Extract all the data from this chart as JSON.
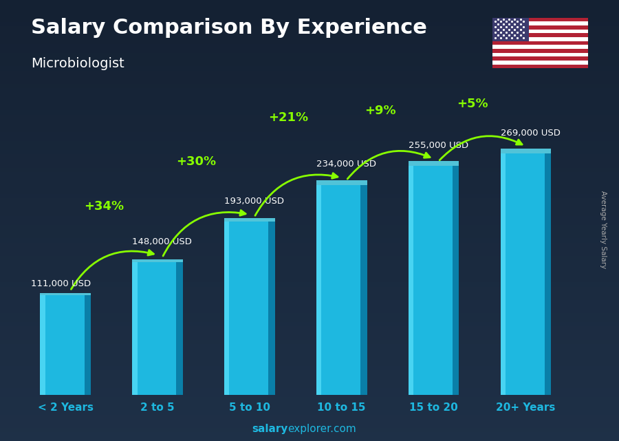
{
  "title": "Salary Comparison By Experience",
  "subtitle": "Microbiologist",
  "ylabel": "Average Yearly Salary",
  "footer_bold": "salary",
  "footer_normal": "explorer.com",
  "categories": [
    "< 2 Years",
    "2 to 5",
    "5 to 10",
    "10 to 15",
    "15 to 20",
    "20+ Years"
  ],
  "values": [
    111000,
    148000,
    193000,
    234000,
    255000,
    269000
  ],
  "value_labels": [
    "111,000 USD",
    "148,000 USD",
    "193,000 USD",
    "234,000 USD",
    "255,000 USD",
    "269,000 USD"
  ],
  "pct_labels": [
    "+34%",
    "+30%",
    "+21%",
    "+9%",
    "+5%"
  ],
  "bar_color_main": "#1EB8E0",
  "bar_color_light": "#4DD8F5",
  "bar_color_dark": "#0A7FA8",
  "bar_color_top": "#5CE0F5",
  "background_color": "#152535",
  "title_color": "#ffffff",
  "subtitle_color": "#ffffff",
  "label_color": "#ffffff",
  "pct_color": "#88ff00",
  "tick_color": "#1EB8E0",
  "footer_color": "#1EB8E0",
  "ylim": [
    0,
    340000
  ],
  "figsize": [
    9.0,
    6.41
  ]
}
